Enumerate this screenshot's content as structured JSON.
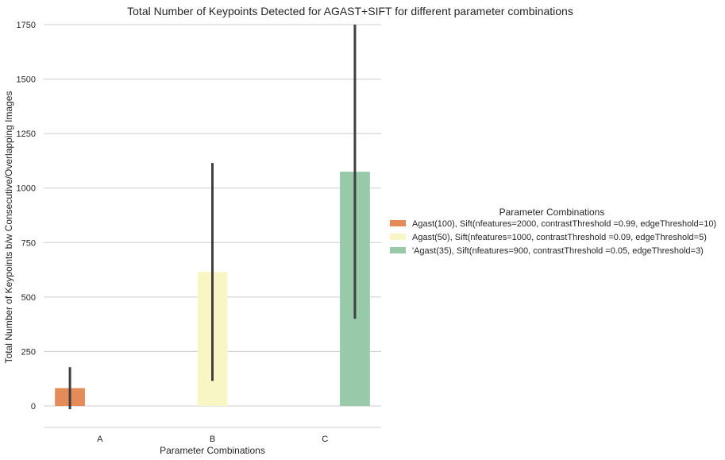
{
  "chart_data": {
    "type": "bar",
    "title": "Total Number of Keypoints Detected for AGAST+SIFT for different parameter combinations",
    "xlabel": "Parameter Combinations",
    "ylabel": "Total Number of Keypoints b/w Consecutive/Overlapping Images",
    "categories": [
      "A",
      "B",
      "C"
    ],
    "ylim": [
      -100,
      1750
    ],
    "yticks": [
      0,
      250,
      500,
      750,
      1000,
      1250,
      1500,
      1750
    ],
    "grid": "horizontal",
    "legend": {
      "title": "Parameter Combinations",
      "placement": "right"
    },
    "series": [
      {
        "name": "Agast(100), Sift(nfeatures=2000, contrastThreshold =0.99, edgeThreshold=10)",
        "color": "#e58b5a",
        "values": [
          82,
          null,
          null
        ],
        "error_low": [
          -15,
          null,
          null
        ],
        "error_high": [
          178,
          null,
          null
        ]
      },
      {
        "name": "Agast(50), Sift(nfeatures=1000, contrastThreshold =0.09, edgeThreshold=5)",
        "color": "#f7f6c4",
        "values": [
          null,
          615,
          null
        ],
        "error_low": [
          null,
          115,
          null
        ],
        "error_high": [
          null,
          1115,
          null
        ]
      },
      {
        "name": "'Agast(35), Sift(nfeatures=900, contrastThreshold =0.05, edgeThreshold=3)",
        "color": "#98caa9",
        "values": [
          null,
          null,
          1075
        ],
        "error_low": [
          null,
          null,
          400
        ],
        "error_high": [
          null,
          null,
          1750
        ]
      }
    ]
  }
}
